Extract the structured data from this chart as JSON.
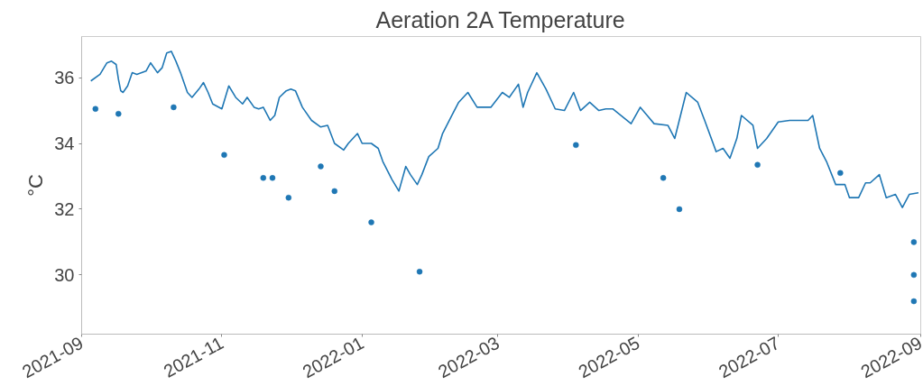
{
  "chart_data": {
    "type": "line",
    "title": "Aeration 2A Temperature",
    "ylabel": "°C",
    "xlim": [
      "2021-09-01",
      "2022-09-01"
    ],
    "xticks": [
      "2021-09",
      "2021-11",
      "2022-01",
      "2022-03",
      "2022-05",
      "2022-07",
      "2022-09"
    ],
    "ylim": [
      28.2,
      37.25
    ],
    "yticks": [
      30,
      32,
      34,
      36
    ],
    "grid": false,
    "marker": "none",
    "line_style": "solid",
    "series": [
      {
        "color": "#1f77b4",
        "x": [
          "2021-09-05",
          "2021-09-09",
          "2021-09-12",
          "2021-09-14",
          "2021-09-16",
          "2021-09-17",
          "2021-09-18",
          "2021-09-19",
          "2021-09-21",
          "2021-09-23",
          "2021-09-25",
          "2021-09-29",
          "2021-10-01",
          "2021-10-04",
          "2021-10-06",
          "2021-10-08",
          "2021-10-10",
          "2021-10-12",
          "2021-10-14",
          "2021-10-17",
          "2021-10-19",
          "2021-10-22",
          "2021-10-24",
          "2021-10-26",
          "2021-10-28",
          "2021-11-01",
          "2021-11-04",
          "2021-11-07",
          "2021-11-10",
          "2021-11-12",
          "2021-11-15",
          "2021-11-17",
          "2021-11-19",
          "2021-11-22",
          "2021-11-24",
          "2021-11-26",
          "2021-11-29",
          "2021-12-01",
          "2021-12-03",
          "2021-12-06",
          "2021-12-10",
          "2021-12-14",
          "2021-12-17",
          "2021-12-20",
          "2021-12-24",
          "2021-12-26",
          "2021-12-30",
          "2022-01-01",
          "2022-01-05",
          "2022-01-08",
          "2022-01-10",
          "2022-01-14",
          "2022-01-17",
          "2022-01-20",
          "2022-01-22",
          "2022-01-25",
          "2022-01-27",
          "2022-01-30",
          "2022-02-03",
          "2022-02-05",
          "2022-02-09",
          "2022-02-12",
          "2022-02-16",
          "2022-02-20",
          "2022-02-26",
          "2022-03-03",
          "2022-03-06",
          "2022-03-10",
          "2022-03-12",
          "2022-03-14",
          "2022-03-18",
          "2022-03-22",
          "2022-03-26",
          "2022-03-30",
          "2022-04-03",
          "2022-04-06",
          "2022-04-10",
          "2022-04-14",
          "2022-04-17",
          "2022-04-20",
          "2022-04-28",
          "2022-05-02",
          "2022-05-05",
          "2022-05-08",
          "2022-05-14",
          "2022-05-17",
          "2022-05-22",
          "2022-05-27",
          "2022-05-30",
          "2022-06-04",
          "2022-06-07",
          "2022-06-10",
          "2022-06-13",
          "2022-06-15",
          "2022-06-20",
          "2022-06-22",
          "2022-06-26",
          "2022-07-01",
          "2022-07-06",
          "2022-07-14",
          "2022-07-16",
          "2022-07-19",
          "2022-07-22",
          "2022-07-26",
          "2022-07-30",
          "2022-08-01",
          "2022-08-05",
          "2022-08-08",
          "2022-08-10",
          "2022-08-14",
          "2022-08-17",
          "2022-08-21",
          "2022-08-24",
          "2022-08-27",
          "2022-08-31"
        ],
        "values": [
          35.9,
          36.1,
          36.45,
          36.5,
          36.4,
          35.95,
          35.6,
          35.55,
          35.75,
          36.15,
          36.1,
          36.2,
          36.45,
          36.15,
          36.3,
          36.75,
          36.8,
          36.5,
          36.15,
          35.55,
          35.4,
          35.65,
          35.85,
          35.55,
          35.2,
          35.05,
          35.75,
          35.4,
          35.2,
          35.4,
          35.1,
          35.05,
          35.1,
          34.7,
          34.85,
          35.4,
          35.6,
          35.65,
          35.6,
          35.1,
          34.7,
          34.5,
          34.55,
          34.0,
          33.8,
          34.0,
          34.3,
          34.0,
          34.0,
          33.85,
          33.45,
          32.9,
          32.55,
          33.3,
          33.05,
          32.75,
          33.05,
          33.6,
          33.85,
          34.3,
          34.85,
          35.25,
          35.55,
          35.1,
          35.1,
          35.55,
          35.4,
          35.8,
          35.1,
          35.55,
          36.15,
          35.65,
          35.05,
          35.0,
          35.55,
          35.0,
          35.25,
          35.0,
          35.05,
          35.05,
          34.6,
          35.1,
          34.85,
          34.6,
          34.55,
          34.15,
          35.55,
          35.25,
          34.7,
          33.75,
          33.85,
          33.55,
          34.15,
          34.85,
          34.55,
          33.85,
          34.15,
          34.65,
          34.7,
          34.7,
          34.85,
          33.85,
          33.45,
          32.75,
          32.75,
          32.35,
          32.35,
          32.8,
          32.8,
          33.05,
          32.35,
          32.45,
          32.05,
          32.45,
          32.5
        ]
      },
      {
        "type": "scatter",
        "marker": "circle",
        "color": "#1f77b4",
        "x": [
          "2021-09-07",
          "2021-09-17",
          "2021-10-11",
          "2021-11-02",
          "2021-11-19",
          "2021-11-23",
          "2021-11-30",
          "2021-12-14",
          "2021-12-20",
          "2022-01-05",
          "2022-01-26",
          "2022-04-04",
          "2022-05-12",
          "2022-05-19",
          "2022-06-22",
          "2022-07-28",
          "2022-08-29",
          "2022-08-29",
          "2022-08-29"
        ],
        "values": [
          35.05,
          34.9,
          35.1,
          33.65,
          32.95,
          32.95,
          32.35,
          33.3,
          32.55,
          31.6,
          30.1,
          33.95,
          32.95,
          32.0,
          33.35,
          33.1,
          31.0,
          30.0,
          29.2
        ]
      }
    ]
  }
}
